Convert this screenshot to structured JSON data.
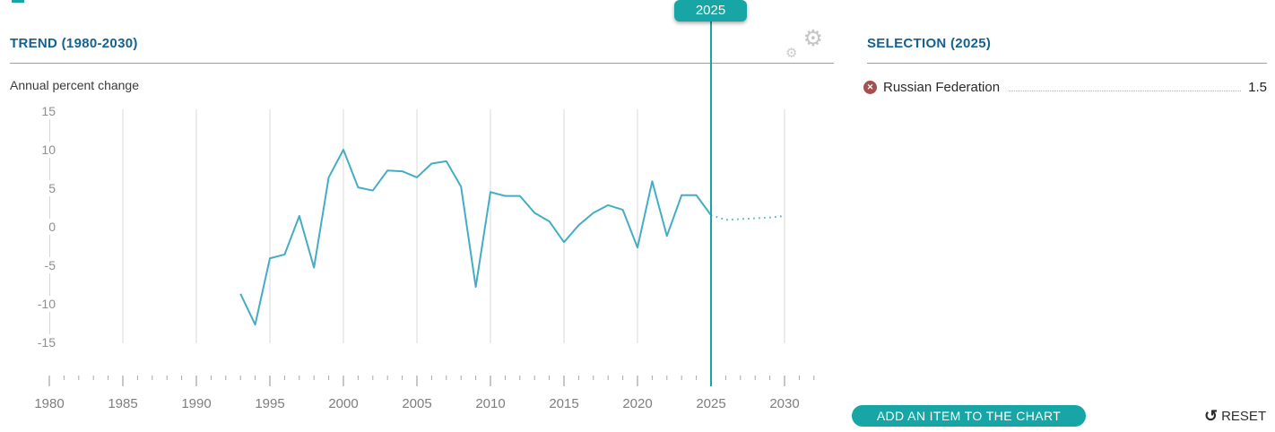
{
  "colors": {
    "accent": "#17a5a5",
    "trend_line": "#44adc4",
    "header_blue": "#15618f",
    "remove_red": "#a84e4e"
  },
  "trend": {
    "title": "TREND (1980-2030)",
    "unit_label": "Annual percent change",
    "marker_label": "2025"
  },
  "selection": {
    "title": "SELECTION (2025)",
    "items": [
      {
        "label": "Russian Federation",
        "value": "1.5"
      }
    ]
  },
  "buttons": {
    "add_item": "ADD AN ITEM TO THE CHART",
    "reset": "RESET"
  },
  "chart_data": {
    "type": "line",
    "title": "TREND (1980-2030)",
    "ylabel": "Annual percent change",
    "x_range": [
      1980,
      2030
    ],
    "x_label_step": 5,
    "x_tick_end": 2032,
    "ylim": [
      -15,
      15
    ],
    "y_ticks": [
      15,
      10,
      5,
      0,
      -5,
      -10,
      -15
    ],
    "grid": "vertical-gridlines-only",
    "marker_year": 2025,
    "marker_value": 1.5,
    "line_color": "#44adc4",
    "projection_style": "dotted",
    "series": [
      {
        "name": "Russian Federation",
        "segments": {
          "historical": {
            "years": [
              1993,
              1994,
              1995,
              1996,
              1997,
              1998,
              1999,
              2000,
              2001,
              2002,
              2003,
              2004,
              2005,
              2006,
              2007,
              2008,
              2009,
              2010,
              2011,
              2012,
              2013,
              2014,
              2015,
              2016,
              2017,
              2018,
              2019,
              2020,
              2021,
              2022,
              2023,
              2024,
              2025
            ],
            "values": [
              -8.7,
              -12.7,
              -4.1,
              -3.6,
              1.4,
              -5.3,
              6.4,
              10.0,
              5.1,
              4.7,
              7.3,
              7.2,
              6.4,
              8.2,
              8.5,
              5.2,
              -7.8,
              4.5,
              4.0,
              4.0,
              1.8,
              0.7,
              -2.0,
              0.2,
              1.8,
              2.8,
              2.2,
              -2.7,
              5.9,
              -1.2,
              4.1,
              4.1,
              1.5
            ]
          },
          "projection": {
            "years": [
              2025,
              2026,
              2027,
              2028,
              2029,
              2030
            ],
            "values": [
              1.5,
              0.9,
              1.0,
              1.1,
              1.2,
              1.4
            ]
          }
        }
      }
    ]
  }
}
